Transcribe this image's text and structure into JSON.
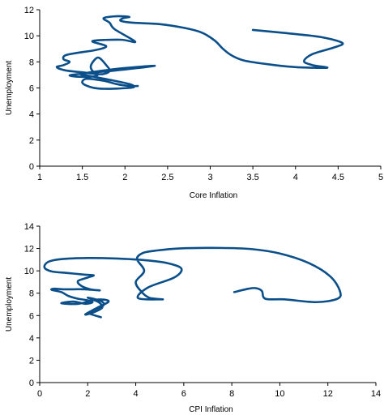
{
  "colors": {
    "series": "#0b4f8a",
    "axis": "#000000"
  },
  "chart_data": [
    {
      "type": "line",
      "xlabel": "Core Inflation",
      "ylabel": "Unemployment",
      "xlim": [
        1,
        5
      ],
      "ylim": [
        0,
        12
      ],
      "x_ticks": [
        "1",
        "1.5",
        "2",
        "2.5",
        "3",
        "3.5",
        "4",
        "4.5",
        "5"
      ],
      "y_ticks": [
        "0",
        "2",
        "4",
        "6",
        "8",
        "10",
        "12"
      ],
      "grid": false,
      "series": [
        {
          "x": [
            3.5,
            3.9,
            4.3,
            4.55,
            4.45,
            4.2,
            4.1,
            4.2,
            4.37,
            4.0,
            3.7,
            3.4,
            3.25,
            3.15,
            3.05,
            2.9,
            2.7,
            2.4,
            2.1,
            1.95,
            1.98,
            2.05,
            1.9,
            1.75,
            1.82,
            1.88,
            2.12,
            1.95,
            1.62,
            1.78,
            1.65,
            1.45,
            1.3,
            1.28,
            1.35,
            1.28,
            1.2,
            1.3,
            1.5,
            1.72,
            1.82,
            1.78,
            1.7,
            1.65,
            1.6,
            1.62,
            1.68,
            1.65,
            1.5,
            1.35,
            1.5,
            1.9,
            2.35,
            1.95,
            1.6,
            1.48,
            1.6,
            1.8,
            2.05,
            2.1,
            1.9,
            1.7,
            1.58,
            1.5,
            1.55,
            1.75,
            1.9,
            2.05,
            2.15
          ],
          "y": [
            10.45,
            10.2,
            9.9,
            9.45,
            9.1,
            8.6,
            8.05,
            7.75,
            7.55,
            7.6,
            7.8,
            8.1,
            8.5,
            9.0,
            9.65,
            10.25,
            10.6,
            10.9,
            11.0,
            11.15,
            11.35,
            11.45,
            11.5,
            11.35,
            11.0,
            10.5,
            9.55,
            9.7,
            9.6,
            9.2,
            8.9,
            8.7,
            8.5,
            8.2,
            8.0,
            7.75,
            7.6,
            7.35,
            7.2,
            7.05,
            7.3,
            7.75,
            8.3,
            8.2,
            7.7,
            7.3,
            7.1,
            6.9,
            6.85,
            6.95,
            7.1,
            7.35,
            7.7,
            7.5,
            7.2,
            7.05,
            6.9,
            6.65,
            6.3,
            6.05,
            5.95,
            5.95,
            6.1,
            6.4,
            6.7,
            6.55,
            6.3,
            6.15,
            6.15
          ]
        }
      ]
    },
    {
      "type": "line",
      "xlabel": "CPI Inflation",
      "ylabel": "Unemployment",
      "xlim": [
        0,
        14
      ],
      "ylim": [
        0,
        14
      ],
      "x_ticks": [
        "0",
        "2",
        "4",
        "6",
        "8",
        "10",
        "12",
        "14"
      ],
      "y_ticks": [
        "0",
        "2",
        "4",
        "6",
        "8",
        "10",
        "12",
        "14"
      ],
      "grid": false,
      "series": [
        {
          "x": [
            8.1,
            8.7,
            9.0,
            9.25,
            9.4,
            10.2,
            11.5,
            12.4,
            12.5,
            12.1,
            11.2,
            10.0,
            8.8,
            7.5,
            5.8,
            4.8,
            4.3,
            4.05,
            4.35,
            4.0,
            4.25,
            4.55,
            4.85,
            5.1,
            4.1,
            4.5,
            5.6,
            5.9,
            5.3,
            4.4,
            3.2,
            2.0,
            0.9,
            0.35,
            0.2,
            0.5,
            1.2,
            1.9,
            2.25,
            2.0,
            1.6,
            1.7,
            2.1,
            2.5,
            1.9,
            1.4,
            1.0,
            0.6,
            0.5,
            0.9,
            1.2,
            1.6,
            1.9,
            2.2,
            1.9,
            1.4,
            0.9,
            1.6,
            2.3,
            2.75,
            2.85,
            2.4,
            1.9,
            2.2,
            2.6,
            2.45,
            2.0,
            2.55,
            2.65,
            2.2,
            2.05,
            2.55
          ],
          "y": [
            8.1,
            8.4,
            8.45,
            8.2,
            7.5,
            7.45,
            7.2,
            7.5,
            8.2,
            9.5,
            10.7,
            11.55,
            11.95,
            12.05,
            12.0,
            11.8,
            11.6,
            11.05,
            10.0,
            9.0,
            8.1,
            7.6,
            7.5,
            7.45,
            7.55,
            8.5,
            9.4,
            10.2,
            10.7,
            10.95,
            11.1,
            11.15,
            11.05,
            10.8,
            10.3,
            9.95,
            9.8,
            9.65,
            9.6,
            9.4,
            9.1,
            8.7,
            8.35,
            8.25,
            8.35,
            8.35,
            8.35,
            8.4,
            8.3,
            8.1,
            7.75,
            7.5,
            7.4,
            7.2,
            7.05,
            7.25,
            7.1,
            7.05,
            7.4,
            7.4,
            7.2,
            6.7,
            6.1,
            6.25,
            6.7,
            7.2,
            7.6,
            7.3,
            6.9,
            6.45,
            6.2,
            5.85
          ]
        }
      ]
    }
  ]
}
